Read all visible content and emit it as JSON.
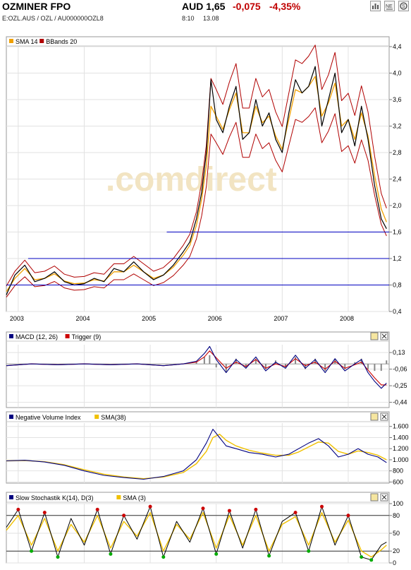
{
  "header": {
    "title": "OZMINER FPO",
    "subtitle": "E:OZL.AUS  /  OZL  /  AU000000OZL8",
    "price": "AUD 1,65",
    "change": "-0,075",
    "change_pct": "-4,35%",
    "time": "8:10",
    "date": "13.08"
  },
  "toolbar": [
    "bar-chart-icon",
    "news-icon",
    "settings-icon",
    "refresh-icon"
  ],
  "watermark": ".comdirect",
  "colors": {
    "price": "#000000",
    "sma": "#f0a000",
    "bbands": "#b00000",
    "support": "#0000c0",
    "macd": "#000080",
    "trigger": "#cc0000",
    "histogram": "#888888",
    "nvi": "#000080",
    "stoch": "#000000",
    "stoch_sma": "#f0c000",
    "overbought": "#cc0000",
    "oversold": "#00aa00"
  },
  "chart_data": [
    {
      "type": "line",
      "name": "price",
      "legend": [
        "SMA 14",
        "BBands 20"
      ],
      "yticks": [
        "4,4",
        "4,0",
        "3,6",
        "3,2",
        "2,8",
        "2,4",
        "2,0",
        "1,6",
        "1,2",
        "0,8",
        "0,4"
      ],
      "ytick_values": [
        4.4,
        4.0,
        3.6,
        3.2,
        2.8,
        2.4,
        2.0,
        1.6,
        1.2,
        0.8,
        0.4
      ],
      "xticks": [
        "2003",
        "2004",
        "2005",
        "2006",
        "2007",
        "2008"
      ],
      "xtick_values": [
        2003.0,
        2004.0,
        2005.0,
        2006.0,
        2007.0,
        2008.0
      ],
      "xlim": [
        2002.82,
        2008.62
      ],
      "ylim": [
        0.4,
        4.4
      ],
      "x": [
        2002.82,
        2002.95,
        2003.1,
        2003.25,
        2003.4,
        2003.55,
        2003.7,
        2003.85,
        2004.0,
        2004.15,
        2004.3,
        2004.45,
        2004.6,
        2004.75,
        2004.9,
        2005.05,
        2005.2,
        2005.35,
        2005.5,
        2005.6,
        2005.7,
        2005.78,
        2005.85,
        2005.92,
        2006.0,
        2006.1,
        2006.2,
        2006.3,
        2006.4,
        2006.5,
        2006.6,
        2006.7,
        2006.8,
        2006.9,
        2007.0,
        2007.1,
        2007.2,
        2007.3,
        2007.4,
        2007.5,
        2007.6,
        2007.7,
        2007.8,
        2007.9,
        2008.0,
        2008.1,
        2008.2,
        2008.3,
        2008.4,
        2008.5,
        2008.58
      ],
      "close": [
        0.65,
        0.95,
        1.1,
        0.85,
        0.9,
        1.0,
        0.85,
        0.8,
        0.82,
        0.9,
        0.85,
        1.05,
        1.0,
        1.15,
        1.0,
        0.88,
        0.95,
        1.1,
        1.3,
        1.45,
        1.8,
        2.2,
        2.8,
        3.9,
        3.3,
        3.1,
        3.5,
        3.8,
        3.0,
        3.1,
        3.6,
        3.2,
        3.4,
        3.0,
        2.8,
        3.4,
        3.9,
        3.7,
        3.8,
        4.1,
        3.2,
        3.6,
        4.0,
        3.1,
        3.3,
        2.9,
        3.5,
        3.0,
        2.3,
        1.8,
        1.65
      ],
      "sma14": [
        0.7,
        0.9,
        1.05,
        0.88,
        0.9,
        0.97,
        0.86,
        0.82,
        0.83,
        0.88,
        0.86,
        1.0,
        1.0,
        1.1,
        1.0,
        0.9,
        0.95,
        1.07,
        1.25,
        1.4,
        1.7,
        2.1,
        2.6,
        3.5,
        3.35,
        3.15,
        3.45,
        3.7,
        3.1,
        3.1,
        3.5,
        3.25,
        3.35,
        3.05,
        2.85,
        3.3,
        3.75,
        3.7,
        3.8,
        3.95,
        3.35,
        3.55,
        3.85,
        3.2,
        3.3,
        3.0,
        3.4,
        3.05,
        2.45,
        1.95,
        1.75
      ],
      "support_levels": [
        0.8,
        1.2,
        1.6
      ],
      "support_start": [
        2002.82,
        2003.15,
        2005.25
      ]
    },
    {
      "type": "line",
      "name": "macd",
      "legend": [
        "MACD (12, 26)",
        "Trigger (9)"
      ],
      "yticks": [
        "0,13",
        "-0,06",
        "-0,25",
        "-0,44"
      ],
      "ytick_values": [
        0.13,
        -0.06,
        -0.25,
        -0.44
      ],
      "ylim": [
        -0.5,
        0.22
      ],
      "x": [
        2002.82,
        2003.2,
        2003.6,
        2004.0,
        2004.4,
        2004.8,
        2005.2,
        2005.5,
        2005.7,
        2005.82,
        2005.9,
        2006.0,
        2006.15,
        2006.3,
        2006.45,
        2006.6,
        2006.75,
        2006.9,
        2007.05,
        2007.2,
        2007.35,
        2007.5,
        2007.65,
        2007.8,
        2007.95,
        2008.1,
        2008.2,
        2008.3,
        2008.4,
        2008.5,
        2008.58
      ],
      "macd": [
        -0.02,
        0.0,
        -0.01,
        0.0,
        -0.01,
        0.0,
        -0.02,
        0.0,
        0.03,
        0.12,
        0.2,
        0.05,
        -0.1,
        0.05,
        -0.05,
        0.08,
        -0.08,
        0.02,
        -0.05,
        0.1,
        -0.05,
        0.05,
        -0.1,
        0.06,
        -0.08,
        0.0,
        0.05,
        -0.1,
        -0.2,
        -0.28,
        -0.22
      ],
      "trigger": [
        -0.02,
        0.0,
        -0.01,
        0.0,
        -0.01,
        0.0,
        -0.02,
        0.0,
        0.02,
        0.08,
        0.15,
        0.07,
        -0.05,
        0.02,
        -0.03,
        0.05,
        -0.05,
        0.0,
        -0.03,
        0.06,
        -0.02,
        0.02,
        -0.06,
        0.03,
        -0.05,
        -0.01,
        0.02,
        -0.07,
        -0.16,
        -0.24,
        -0.24
      ]
    },
    {
      "type": "line",
      "name": "nvi",
      "legend": [
        "Negative Volume Index",
        "SMA(38)"
      ],
      "yticks": [
        "1.600",
        "1.400",
        "1.200",
        "1.000",
        "800",
        "600"
      ],
      "ytick_values": [
        1600,
        1400,
        1200,
        1000,
        800,
        600
      ],
      "ylim": [
        580,
        1660
      ],
      "x": [
        2002.82,
        2003.1,
        2003.4,
        2003.7,
        2004.0,
        2004.3,
        2004.6,
        2004.9,
        2005.2,
        2005.5,
        2005.7,
        2005.85,
        2005.95,
        2006.05,
        2006.15,
        2006.3,
        2006.5,
        2006.7,
        2006.9,
        2007.1,
        2007.25,
        2007.4,
        2007.55,
        2007.7,
        2007.85,
        2008.0,
        2008.15,
        2008.3,
        2008.45,
        2008.58
      ],
      "nvi": [
        980,
        990,
        960,
        900,
        800,
        720,
        680,
        650,
        700,
        800,
        1000,
        1300,
        1550,
        1400,
        1250,
        1200,
        1130,
        1100,
        1050,
        1100,
        1200,
        1300,
        1380,
        1250,
        1050,
        1100,
        1200,
        1100,
        1050,
        950
      ],
      "sma": [
        980,
        985,
        965,
        910,
        820,
        740,
        690,
        660,
        690,
        770,
        930,
        1150,
        1400,
        1460,
        1350,
        1250,
        1170,
        1120,
        1080,
        1080,
        1140,
        1230,
        1320,
        1300,
        1150,
        1100,
        1160,
        1130,
        1080,
        1000
      ]
    },
    {
      "type": "line",
      "name": "stochastic",
      "legend": [
        "Slow Stochastik K(14), D(3)",
        "SMA (3)"
      ],
      "yticks": [
        "100",
        "80",
        "50",
        "20",
        "0"
      ],
      "ytick_values": [
        100,
        80,
        50,
        20,
        0
      ],
      "ylim": [
        0,
        100
      ],
      "levels": [
        80,
        20
      ],
      "x": [
        2002.82,
        2003.0,
        2003.2,
        2003.4,
        2003.6,
        2003.8,
        2004.0,
        2004.2,
        2004.4,
        2004.6,
        2004.8,
        2005.0,
        2005.2,
        2005.4,
        2005.6,
        2005.8,
        2006.0,
        2006.2,
        2006.4,
        2006.6,
        2006.8,
        2007.0,
        2007.2,
        2007.4,
        2007.6,
        2007.8,
        2008.0,
        2008.2,
        2008.35,
        2008.5,
        2008.58
      ],
      "k": [
        60,
        90,
        20,
        85,
        10,
        75,
        30,
        90,
        15,
        80,
        40,
        95,
        10,
        70,
        35,
        92,
        15,
        88,
        25,
        90,
        12,
        70,
        85,
        20,
        95,
        30,
        80,
        10,
        5,
        30,
        35
      ],
      "d": [
        55,
        80,
        30,
        75,
        20,
        65,
        35,
        80,
        25,
        70,
        45,
        85,
        20,
        65,
        40,
        85,
        25,
        80,
        30,
        80,
        20,
        65,
        78,
        30,
        85,
        35,
        72,
        20,
        10,
        22,
        30
      ]
    }
  ]
}
